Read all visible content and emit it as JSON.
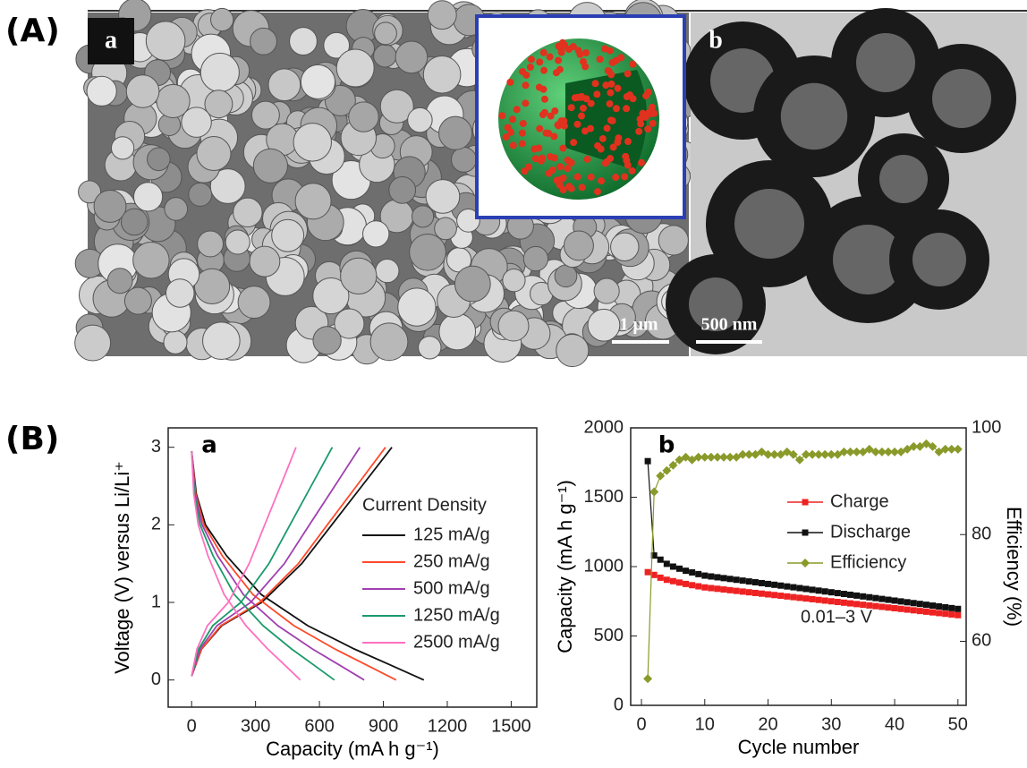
{
  "figure": {
    "panel_a_label": "(A)",
    "panel_b_label": "(B)",
    "images": [
      {
        "label": "a",
        "scale_bar": "1 μm"
      },
      {
        "label": "b",
        "scale_bar": "500 nm"
      }
    ]
  },
  "chart_data": [
    {
      "type": "line",
      "panel_label": "a",
      "xlabel": "Capacity (mA h g⁻¹)",
      "ylabel": "Voltage (V) versus Li/Li⁺",
      "legend_title": "Current Density",
      "xlim": [
        -110,
        1620
      ],
      "ylim": [
        -0.35,
        3.25
      ],
      "xticks": [
        0,
        300,
        600,
        900,
        1200,
        1500
      ],
      "yticks": [
        0,
        1,
        2,
        3
      ],
      "series": [
        {
          "name": "125 mA/g",
          "color": "#111111",
          "x": [
            0,
            22,
            65,
            164,
            327,
            545,
            763,
            927,
            1090,
            null,
            0,
            47,
            141,
            329,
            517,
            658,
            799,
            940
          ],
          "values": [
            2.95,
            2.4,
            2.0,
            1.6,
            1.1,
            0.7,
            0.4,
            0.2,
            0,
            null,
            0.05,
            0.4,
            0.7,
            1.0,
            1.5,
            2.0,
            2.5,
            3.0
          ]
        },
        {
          "name": "250 mA/g",
          "color": "#ff4a2a",
          "x": [
            0,
            19,
            58,
            144,
            288,
            480,
            672,
            816,
            960,
            null,
            0,
            46,
            137,
            319,
            501,
            637,
            774,
            910
          ],
          "values": [
            2.95,
            2.4,
            2.0,
            1.6,
            1.1,
            0.7,
            0.4,
            0.2,
            0,
            null,
            0.05,
            0.4,
            0.7,
            1.0,
            1.5,
            2.0,
            2.5,
            3.0
          ]
        },
        {
          "name": "500 mA/g",
          "color": "#a040b0",
          "x": [
            0,
            16,
            49,
            122,
            243,
            405,
            567,
            689,
            810,
            null,
            0,
            40,
            119,
            277,
            435,
            553,
            672,
            790
          ],
          "values": [
            2.95,
            2.4,
            2.0,
            1.6,
            1.1,
            0.7,
            0.4,
            0.2,
            0,
            null,
            0.05,
            0.4,
            0.7,
            1.0,
            1.5,
            2.0,
            2.5,
            3.0
          ]
        },
        {
          "name": "1250 mA/g",
          "color": "#1a9a6a",
          "x": [
            0,
            13,
            40,
            101,
            201,
            335,
            469,
            570,
            670,
            null,
            0,
            33,
            99,
            231,
            363,
            462,
            561,
            660
          ],
          "values": [
            2.95,
            2.4,
            2.0,
            1.6,
            1.1,
            0.7,
            0.4,
            0.2,
            0,
            null,
            0.05,
            0.4,
            0.7,
            1.0,
            1.5,
            2.0,
            2.5,
            3.0
          ]
        },
        {
          "name": "2500 mA/g",
          "color": "#ff70c0",
          "x": [
            0,
            10,
            31,
            77,
            153,
            255,
            357,
            434,
            510,
            null,
            0,
            25,
            74,
            172,
            270,
            343,
            417,
            490
          ],
          "values": [
            2.95,
            2.4,
            2.0,
            1.6,
            1.1,
            0.7,
            0.4,
            0.2,
            0,
            null,
            0.05,
            0.4,
            0.7,
            1.0,
            1.5,
            2.0,
            2.5,
            3.0
          ]
        }
      ]
    },
    {
      "type": "line",
      "panel_label": "b",
      "xlabel": "Cycle number",
      "ylabel": "Capacity (mA h g⁻¹)",
      "y2label": "Efficiency (%)",
      "annotation": "0.01–3 V",
      "xlim": [
        -1.7,
        51.3
      ],
      "ylim": [
        0,
        2000
      ],
      "y2lim": [
        48,
        100
      ],
      "xticks": [
        0,
        10,
        20,
        30,
        40,
        50
      ],
      "yticks": [
        0,
        500,
        1000,
        1500,
        2000
      ],
      "y2ticks": [
        60,
        80,
        100
      ],
      "x": [
        1,
        2,
        3,
        4,
        5,
        6,
        7,
        8,
        9,
        10,
        11,
        12,
        13,
        14,
        15,
        16,
        17,
        18,
        19,
        20,
        21,
        22,
        23,
        24,
        25,
        26,
        27,
        28,
        29,
        30,
        31,
        32,
        33,
        34,
        35,
        36,
        37,
        38,
        39,
        40,
        41,
        42,
        43,
        44,
        45,
        46,
        47,
        48,
        49,
        50
      ],
      "series": [
        {
          "name": "Charge",
          "color": "#ee2222",
          "marker": "square",
          "values": [
            960,
            940,
            920,
            905,
            895,
            885,
            875,
            866,
            858,
            850,
            845,
            840,
            835,
            830,
            825,
            820,
            815,
            810,
            805,
            800,
            795,
            790,
            785,
            780,
            775,
            770,
            765,
            760,
            755,
            750,
            745,
            740,
            735,
            730,
            725,
            720,
            715,
            710,
            705,
            700,
            695,
            690,
            685,
            680,
            675,
            670,
            665,
            660,
            655,
            650
          ]
        },
        {
          "name": "Discharge",
          "color": "#111111",
          "marker": "square",
          "values": [
            1760,
            1080,
            1050,
            1020,
            1000,
            985,
            970,
            958,
            946,
            935,
            929,
            923,
            917,
            911,
            905,
            899,
            893,
            887,
            881,
            875,
            869,
            863,
            857,
            851,
            845,
            839,
            833,
            827,
            821,
            815,
            809,
            803,
            797,
            791,
            785,
            779,
            773,
            767,
            761,
            755,
            749,
            743,
            737,
            731,
            725,
            719,
            713,
            707,
            701,
            695
          ]
        },
        {
          "name": "Efficiency",
          "color": "#8a9a2a",
          "marker": "diamond",
          "axis": "y2",
          "values": [
            53,
            88,
            91,
            92,
            93,
            94,
            94.5,
            94,
            94.5,
            94.5,
            94.5,
            94.5,
            94.5,
            94.5,
            94.5,
            95,
            95,
            95,
            95.5,
            95,
            95,
            95,
            95.5,
            95,
            94,
            95,
            95,
            95,
            95,
            95,
            95,
            95.5,
            95.5,
            95.5,
            95.5,
            96,
            95.5,
            95.5,
            95.5,
            95.5,
            95.5,
            96,
            96.5,
            96.5,
            97,
            96.5,
            95.5,
            96,
            96,
            96
          ]
        }
      ]
    }
  ]
}
